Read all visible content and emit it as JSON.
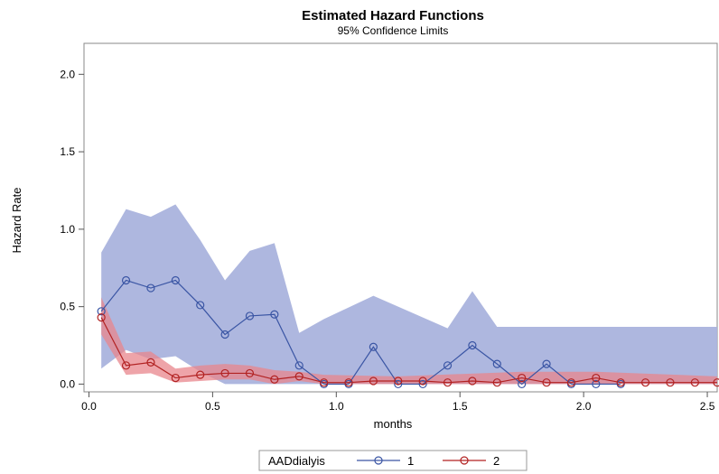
{
  "chart_data": {
    "type": "line",
    "title": "Estimated Hazard Functions",
    "subtitle": "95% Confidence Limits",
    "xlabel": "months",
    "ylabel": "Hazard Rate",
    "xlim": [
      -0.02,
      2.54
    ],
    "ylim": [
      -0.05,
      2.2
    ],
    "xticks": [
      "0.0",
      "0.5",
      "1.0",
      "1.5",
      "2.0",
      "2.5"
    ],
    "yticks": [
      "0.0",
      "0.5",
      "1.0",
      "1.5",
      "2.0"
    ],
    "grid": false,
    "legend_title": "AADdialyis",
    "legend_position": "bottom",
    "series": [
      {
        "name": "1",
        "color": "#3a55a4",
        "band_color": "#aab3dd",
        "x": [
          0.05,
          0.15,
          0.25,
          0.35,
          0.45,
          0.55,
          0.65,
          0.75,
          0.85,
          0.95,
          1.05,
          1.15,
          1.25,
          1.35,
          1.45,
          1.55,
          1.65,
          1.75,
          1.85,
          1.95,
          2.05,
          2.15
        ],
        "y": [
          0.47,
          0.67,
          0.62,
          0.67,
          0.51,
          0.32,
          0.44,
          0.45,
          0.12,
          0.0,
          0.0,
          0.24,
          0.0,
          0.0,
          0.12,
          0.25,
          0.13,
          0.0,
          0.13,
          0.0,
          0.0,
          0.0
        ],
        "band_x": [
          0.05,
          0.15,
          0.25,
          0.35,
          0.45,
          0.55,
          0.65,
          0.75,
          0.85,
          0.95,
          1.15,
          1.45,
          1.55,
          1.65,
          1.85,
          2.54
        ],
        "band_upper": [
          0.85,
          1.13,
          1.08,
          1.16,
          0.93,
          0.67,
          0.86,
          0.91,
          0.33,
          0.42,
          0.57,
          0.36,
          0.6,
          0.37,
          0.37,
          0.37
        ],
        "band_lower": [
          0.1,
          0.22,
          0.16,
          0.18,
          0.08,
          0.0,
          0.0,
          0.0,
          0.0,
          0.0,
          0.0,
          0.0,
          0.0,
          0.0,
          0.0,
          0.0
        ]
      },
      {
        "name": "2",
        "color": "#b22222",
        "band_color": "#e8868c",
        "x": [
          0.05,
          0.15,
          0.25,
          0.35,
          0.45,
          0.55,
          0.65,
          0.75,
          0.85,
          0.95,
          1.05,
          1.15,
          1.25,
          1.35,
          1.45,
          1.55,
          1.65,
          1.75,
          1.85,
          1.95,
          2.05,
          2.15,
          2.25,
          2.35,
          2.45,
          2.54
        ],
        "y": [
          0.43,
          0.12,
          0.14,
          0.04,
          0.06,
          0.07,
          0.07,
          0.03,
          0.05,
          0.01,
          0.01,
          0.02,
          0.02,
          0.02,
          0.01,
          0.02,
          0.01,
          0.04,
          0.01,
          0.01,
          0.04,
          0.01,
          0.01,
          0.01,
          0.01,
          0.01
        ],
        "band_x": [
          0.05,
          0.15,
          0.25,
          0.35,
          0.45,
          0.55,
          0.65,
          0.75,
          0.85,
          0.95,
          1.25,
          1.75,
          2.05,
          2.54
        ],
        "band_upper": [
          0.56,
          0.2,
          0.21,
          0.1,
          0.12,
          0.13,
          0.12,
          0.09,
          0.08,
          0.06,
          0.05,
          0.08,
          0.08,
          0.05
        ],
        "band_lower": [
          0.32,
          0.06,
          0.07,
          0.01,
          0.02,
          0.03,
          0.03,
          0.0,
          0.02,
          0.0,
          0.0,
          0.0,
          0.0,
          0.0
        ]
      }
    ]
  }
}
